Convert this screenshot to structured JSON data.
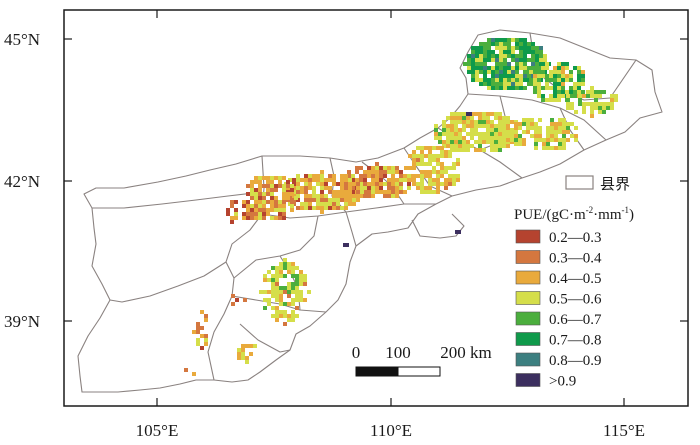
{
  "axes": {
    "lat_labels": [
      "45°N",
      "42°N",
      "39°N"
    ],
    "lon_labels": [
      "105°E",
      "110°E",
      "115°E"
    ]
  },
  "legend": {
    "boundary_label": "县界",
    "title": "PUE/(gC·m",
    "title_sup1": "-2",
    "title_mid": "·mm",
    "title_sup2": "-1",
    "title_end": ")",
    "classes": [
      {
        "label": "0.2—0.3",
        "color": "#b5432f"
      },
      {
        "label": "0.3—0.4",
        "color": "#d4773f"
      },
      {
        "label": "0.4—0.5",
        "color": "#e9aa3c"
      },
      {
        "label": "0.5—0.6",
        "color": "#d5de4a"
      },
      {
        "label": "0.6—0.7",
        "color": "#4bae3d"
      },
      {
        "label": "0.7—0.8",
        "color": "#0f9a4b"
      },
      {
        "label": "0.8—0.9",
        "color": "#3c7f80"
      },
      {
        "label": ">0.9",
        "color": "#3c2f5f"
      }
    ]
  },
  "scale_bar": {
    "labels": [
      "0",
      "100",
      "200 km"
    ]
  },
  "colors": {
    "boundary": "#8a8280",
    "frame": "#1a1a1a"
  }
}
